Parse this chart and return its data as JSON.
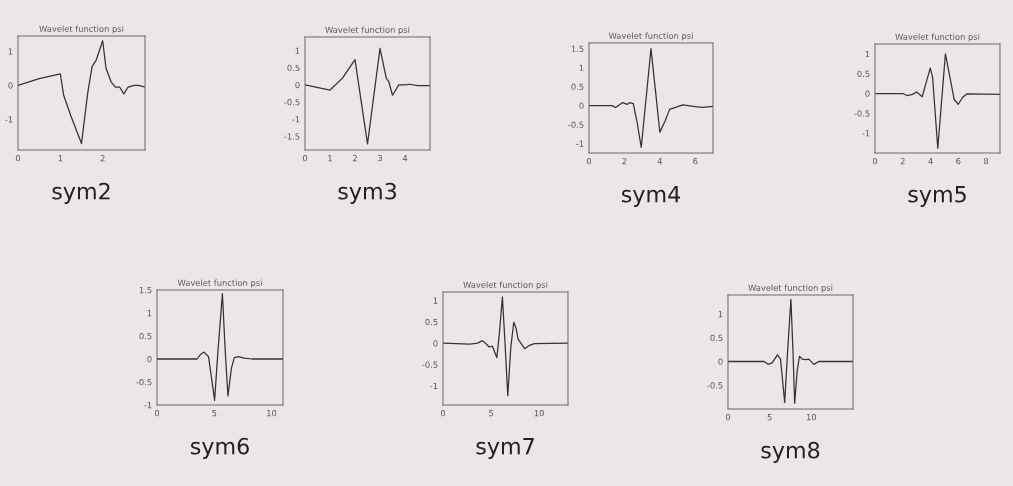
{
  "chart_data": [
    {
      "type": "line",
      "title": "Wavelet function psi",
      "xlabel": "sym2",
      "color": "#333333",
      "xlim": [
        0,
        3
      ],
      "ylim": [
        -1.9,
        1.45
      ],
      "xticks": [
        0,
        1,
        2
      ],
      "yticks": [
        -1,
        0,
        1
      ],
      "x": [
        0,
        0.5,
        1,
        1.08,
        1.25,
        1.5,
        1.65,
        1.75,
        1.85,
        2,
        2.08,
        2.2,
        2.3,
        2.4,
        2.5,
        2.6,
        2.75,
        2.85,
        3
      ],
      "values": [
        0,
        0.2,
        0.34,
        -0.3,
        -0.9,
        -1.71,
        -0.2,
        0.55,
        0.75,
        1.31,
        0.5,
        0.1,
        -0.05,
        -0.05,
        -0.25,
        -0.05,
        0,
        0,
        -0.05
      ]
    },
    {
      "type": "line",
      "title": "Wavelet function psi",
      "xlabel": "sym3",
      "color": "#333333",
      "xlim": [
        0,
        5
      ],
      "ylim": [
        -1.9,
        1.4
      ],
      "xticks": [
        0,
        1,
        2,
        3,
        4
      ],
      "yticks": [
        -1.5,
        -1,
        -0.5,
        0,
        0.5,
        1
      ],
      "x": [
        0,
        1,
        1.5,
        2,
        2.5,
        3,
        3.25,
        3.35,
        3.5,
        3.75,
        4,
        4.2,
        4.5,
        5
      ],
      "values": [
        0,
        -0.15,
        0.2,
        0.74,
        -1.72,
        1.07,
        0.2,
        0.1,
        -0.3,
        0,
        0,
        0.02,
        -0.02,
        -0.02
      ]
    },
    {
      "type": "line",
      "title": "Wavelet function psi",
      "xlabel": "sym4",
      "color": "#333333",
      "xlim": [
        0,
        7
      ],
      "ylim": [
        -1.25,
        1.65
      ],
      "xticks": [
        0,
        2,
        4,
        6
      ],
      "yticks": [
        -1,
        -0.5,
        0,
        0.5,
        1,
        1.5
      ],
      "x": [
        0,
        1.3,
        1.5,
        1.9,
        2.15,
        2.3,
        2.5,
        2.7,
        2.95,
        3.5,
        4.0,
        4.3,
        4.55,
        5.3,
        6.0,
        6.4,
        7
      ],
      "values": [
        0,
        0,
        -0.05,
        0.08,
        0.03,
        0.08,
        0.05,
        -0.4,
        -1.1,
        1.5,
        -0.7,
        -0.4,
        -0.1,
        0.02,
        -0.03,
        -0.05,
        -0.02
      ]
    },
    {
      "type": "line",
      "title": "Wavelet function psi",
      "xlabel": "sym5",
      "color": "#333333",
      "xlim": [
        0,
        9
      ],
      "ylim": [
        -1.5,
        1.25
      ],
      "xticks": [
        0,
        2,
        4,
        6,
        8
      ],
      "yticks": [
        -1,
        -0.5,
        0,
        0.5,
        1
      ],
      "x": [
        0,
        2,
        2.3,
        2.7,
        3.0,
        3.4,
        3.7,
        3.98,
        4.15,
        4.52,
        5.07,
        5.4,
        5.7,
        6.0,
        6.3,
        6.6,
        9
      ],
      "values": [
        0,
        0,
        -0.05,
        -0.02,
        0.04,
        -0.08,
        0.3,
        0.64,
        0.4,
        -1.38,
        1.0,
        0.4,
        -0.15,
        -0.27,
        -0.1,
        -0.01,
        -0.02
      ]
    },
    {
      "type": "line",
      "title": "Wavelet function psi",
      "xlabel": "sym6",
      "color": "#333333",
      "xlim": [
        0,
        11
      ],
      "ylim": [
        -1,
        1.5
      ],
      "xticks": [
        0,
        5,
        10
      ],
      "yticks": [
        -1,
        -0.5,
        0,
        0.5,
        1,
        1.5
      ],
      "x": [
        0,
        3.5,
        3.8,
        4.1,
        4.5,
        4.75,
        5.03,
        5.3,
        5.71,
        5.95,
        6.19,
        6.5,
        6.75,
        7.1,
        7.6,
        8.3,
        11
      ],
      "values": [
        0,
        0,
        0.1,
        0.15,
        0.05,
        -0.4,
        -0.9,
        0.1,
        1.42,
        0.2,
        -0.8,
        -0.2,
        0.03,
        0.05,
        0.02,
        0,
        0
      ]
    },
    {
      "type": "line",
      "title": "Wavelet function psi",
      "xlabel": "sym7",
      "color": "#333333",
      "xlim": [
        0,
        13
      ],
      "ylim": [
        -1.45,
        1.2
      ],
      "xticks": [
        0,
        5,
        10
      ],
      "yticks": [
        -1,
        -0.5,
        0,
        0.5,
        1
      ],
      "x": [
        0,
        2.8,
        3.6,
        4.1,
        4.5,
        4.8,
        5.14,
        5.6,
        5.85,
        6.18,
        6.45,
        6.74,
        7.05,
        7.36,
        7.6,
        7.8,
        8.1,
        8.5,
        9.0,
        9.5,
        13
      ],
      "values": [
        0,
        -0.02,
        0,
        0.06,
        -0.02,
        -0.09,
        -0.07,
        -0.34,
        0.2,
        1.08,
        0,
        -1.23,
        -0.1,
        0.49,
        0.35,
        0.1,
        0,
        -0.13,
        -0.05,
        -0.01,
        0
      ]
    },
    {
      "type": "line",
      "title": "Wavelet function psi",
      "xlabel": "sym8",
      "color": "#333333",
      "xlim": [
        0,
        15
      ],
      "ylim": [
        -1,
        1.4
      ],
      "xticks": [
        0,
        5,
        10
      ],
      "yticks": [
        -0.5,
        0,
        0.5,
        1
      ],
      "x": [
        0,
        4.35,
        4.8,
        5.3,
        5.93,
        6.3,
        6.55,
        6.8,
        7.15,
        7.55,
        7.8,
        8.0,
        8.3,
        8.58,
        8.9,
        9.3,
        9.7,
        10.3,
        10.9,
        15
      ],
      "values": [
        0,
        0,
        -0.06,
        -0.03,
        0.14,
        0.05,
        -0.4,
        -0.86,
        0.2,
        1.31,
        0.2,
        -0.88,
        -0.2,
        0.11,
        0.05,
        0.04,
        0.05,
        -0.06,
        0,
        0
      ]
    }
  ]
}
